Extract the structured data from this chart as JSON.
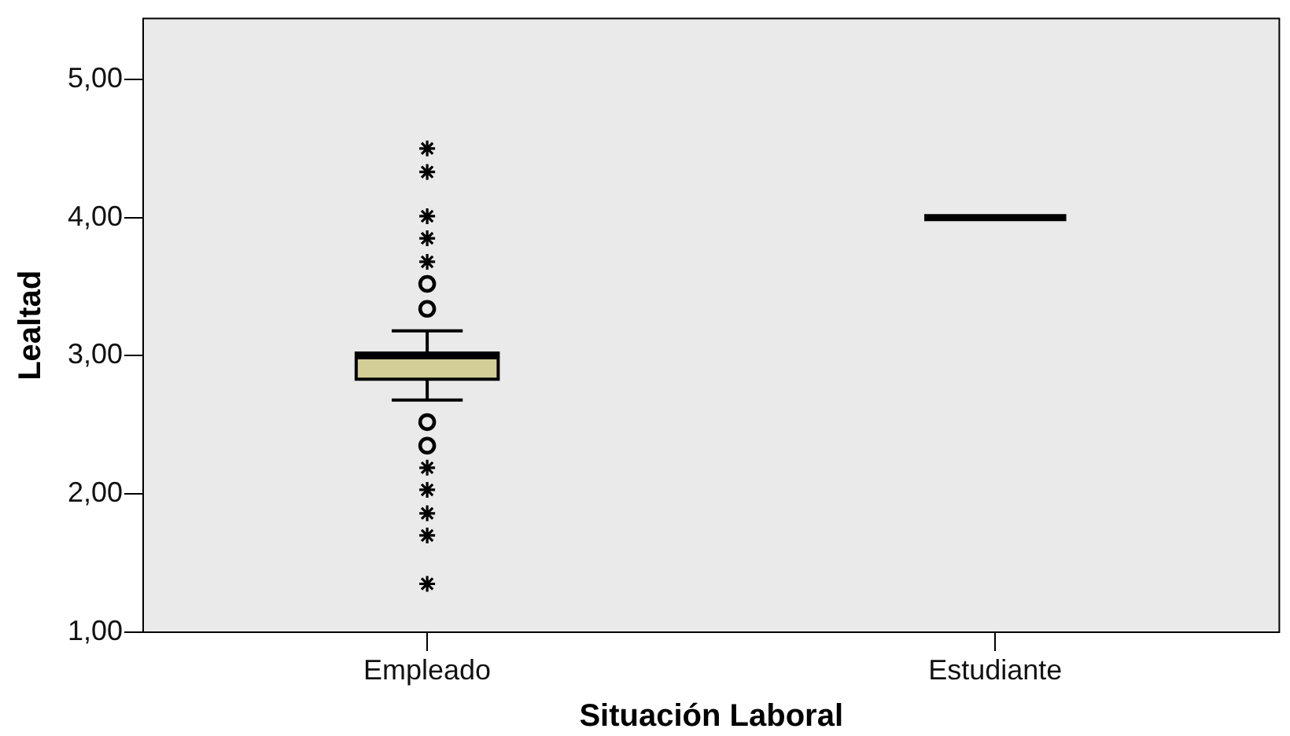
{
  "chart_data": {
    "type": "box",
    "xlabel": "Situación Laboral",
    "ylabel": "Lealtad",
    "categories": [
      "Empleado",
      "Estudiante"
    ],
    "boxes": [
      {
        "low": 2.68,
        "q1": 2.83,
        "median": 3.0,
        "q3": 3.02,
        "high": 3.18,
        "outliers": [
          4.5,
          4.33,
          4.01,
          3.85,
          3.68,
          3.52,
          3.34,
          2.52,
          2.35,
          2.19,
          2.03,
          1.86,
          1.7,
          1.35
        ]
      },
      {
        "low": 4.0,
        "q1": 4.0,
        "median": 4.0,
        "q3": 4.0,
        "high": 4.0
      }
    ],
    "colors": [
      "#d3ce97",
      "#000000"
    ],
    "ylim": [
      1,
      5.44
    ],
    "yticks": [
      {
        "value": 1,
        "label": "1,00"
      },
      {
        "value": 2,
        "label": "2,00"
      },
      {
        "value": 3,
        "label": "3,00"
      },
      {
        "value": 4,
        "label": "4,00"
      },
      {
        "value": 5,
        "label": "5,00"
      }
    ],
    "grid": false
  }
}
